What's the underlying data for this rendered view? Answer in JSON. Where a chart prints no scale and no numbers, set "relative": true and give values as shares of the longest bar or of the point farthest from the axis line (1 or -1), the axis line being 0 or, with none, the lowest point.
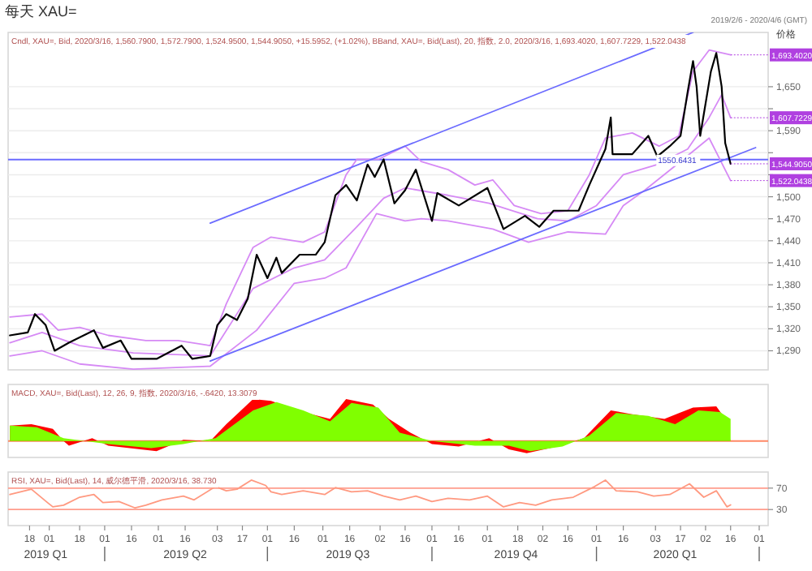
{
  "chart_data": [
    {
      "type": "line",
      "title": "每天 XAU=",
      "subtitle": "2019/2/6 - 2020/4/6 (GMT)",
      "ylabel": "价格",
      "xlim": [
        "2019-02-06",
        "2020-04-06"
      ],
      "ylim": [
        1264,
        1724
      ],
      "grid": "y",
      "tick_labels": "y",
      "yticks": [
        {
          "value": 1290,
          "label": "1,290"
        },
        {
          "value": 1320,
          "label": "1,320"
        },
        {
          "value": 1350,
          "label": "1,350"
        },
        {
          "value": 1380,
          "label": "1,380"
        },
        {
          "value": 1410,
          "label": "1,410"
        },
        {
          "value": 1440,
          "label": "1,440"
        },
        {
          "value": 1470,
          "label": "1,470"
        },
        {
          "value": 1500,
          "label": "1,500"
        },
        {
          "value": 1530,
          "label": null
        },
        {
          "value": 1560,
          "label": null
        },
        {
          "value": 1590,
          "label": "1,590"
        },
        {
          "value": 1620,
          "label": null
        },
        {
          "value": 1650,
          "label": "1,650"
        }
      ],
      "ref_lines": [
        {
          "axis": "y",
          "value": 1550.6431,
          "label": "1550.6431",
          "color": "#6b6bff"
        }
      ],
      "series": [
        {
          "color": "#d68af5",
          "x": [
            "2019-02-07",
            "2019-02-25",
            "2019-03-06",
            "2019-03-18",
            "2019-04-03",
            "2019-04-24",
            "2019-05-12",
            "2019-05-30",
            "2019-06-08",
            "2019-06-23",
            "2019-07-03",
            "2019-07-21",
            "2019-08-02",
            "2019-08-14",
            "2019-08-20",
            "2019-09-01",
            "2019-09-16",
            "2019-09-25",
            "2019-10-10",
            "2019-10-25",
            "2019-11-04",
            "2019-11-16",
            "2019-12-01",
            "2019-12-16",
            "2019-12-28",
            "2020-01-06",
            "2020-01-21",
            "2020-02-05",
            "2020-02-16",
            "2020-02-24",
            "2020-03-04",
            "2020-03-16"
          ],
          "values": [
            1336,
            1340,
            1318,
            1322,
            1311,
            1304,
            1304,
            1297,
            1354,
            1431,
            1445,
            1438,
            1452,
            1530,
            1551,
            1551,
            1569,
            1548,
            1537,
            1516,
            1523,
            1488,
            1477,
            1481,
            1530,
            1580,
            1587,
            1569,
            1583,
            1671,
            1700,
            1693.402
          ]
        },
        {
          "color": "#d68af5",
          "x": [
            "2019-02-07",
            "2019-02-25",
            "2019-03-18",
            "2019-04-17",
            "2019-05-30",
            "2019-06-23",
            "2019-07-16",
            "2019-08-02",
            "2019-08-20",
            "2019-09-04",
            "2019-09-16",
            "2019-10-10",
            "2019-11-02",
            "2019-11-29",
            "2019-12-16",
            "2020-01-01",
            "2020-01-16",
            "2020-02-04",
            "2020-02-21",
            "2020-03-04",
            "2020-03-11",
            "2020-03-16"
          ],
          "values": [
            1301,
            1315,
            1297,
            1287,
            1283,
            1375,
            1403,
            1414,
            1459,
            1498,
            1512,
            1502,
            1491,
            1470,
            1467,
            1488,
            1530,
            1544,
            1565,
            1608,
            1639,
            1607.7229
          ]
        },
        {
          "color": "#d68af5",
          "x": [
            "2019-02-07",
            "2019-02-25",
            "2019-03-18",
            "2019-04-17",
            "2019-05-30",
            "2019-06-25",
            "2019-07-16",
            "2019-08-02",
            "2019-08-14",
            "2019-08-31",
            "2019-09-16",
            "2019-09-25",
            "2019-10-10",
            "2019-11-04",
            "2019-11-24",
            "2019-12-16",
            "2020-01-06",
            "2020-01-16",
            "2020-01-28",
            "2020-02-15",
            "2020-03-04",
            "2020-03-16"
          ],
          "values": [
            1283,
            1290,
            1272,
            1265,
            1269,
            1318,
            1382,
            1389,
            1403,
            1477,
            1467,
            1470,
            1467,
            1456,
            1438,
            1452,
            1449,
            1488,
            1509,
            1544,
            1580,
            1522.0438
          ]
        },
        {
          "color": "#6b6bff",
          "x": [
            "2019-05-30",
            "2020-02-24"
          ],
          "values": [
            1464,
            1724
          ]
        },
        {
          "color": "#6b6bff",
          "x": [
            "2019-05-30",
            "2020-03-30"
          ],
          "values": [
            1276,
            1567
          ]
        },
        {
          "color": "#000000",
          "x": [
            "2019-02-07",
            "2019-02-17",
            "2019-02-21",
            "2019-02-27",
            "2019-03-04",
            "2019-03-12",
            "2019-03-26",
            "2019-03-31",
            "2019-04-10",
            "2019-04-16",
            "2019-04-30",
            "2019-05-14",
            "2019-05-20",
            "2019-05-30",
            "2019-06-03",
            "2019-06-08",
            "2019-06-14",
            "2019-06-20",
            "2019-06-25",
            "2019-07-01",
            "2019-07-06",
            "2019-07-09",
            "2019-07-19",
            "2019-07-28",
            "2019-08-02",
            "2019-08-08",
            "2019-08-14",
            "2019-08-20",
            "2019-08-26",
            "2019-08-30",
            "2019-09-04",
            "2019-09-10",
            "2019-09-16",
            "2019-09-22",
            "2019-10-01",
            "2019-10-04",
            "2019-10-16",
            "2019-11-01",
            "2019-11-10",
            "2019-11-22",
            "2019-11-30",
            "2019-12-08",
            "2019-12-22",
            "2019-12-28",
            "2020-01-06",
            "2020-01-09",
            "2020-01-10",
            "2020-01-21",
            "2020-01-30",
            "2020-02-04",
            "2020-02-11",
            "2020-02-17",
            "2020-02-21",
            "2020-02-24",
            "2020-02-26",
            "2020-02-28",
            "2020-03-05",
            "2020-03-08",
            "2020-03-11",
            "2020-03-13",
            "2020-03-16"
          ],
          "values": [
            1311,
            1315,
            1340,
            1325,
            1290,
            1301,
            1318,
            1294,
            1304,
            1279,
            1279,
            1297,
            1279,
            1283,
            1325,
            1340,
            1332,
            1361,
            1421,
            1389,
            1417,
            1396,
            1421,
            1421,
            1438,
            1502,
            1516,
            1495,
            1544,
            1527,
            1551,
            1491,
            1509,
            1537,
            1467,
            1505,
            1488,
            1512,
            1456,
            1474,
            1459,
            1481,
            1481,
            1516,
            1565,
            1608,
            1558,
            1558,
            1583,
            1555,
            1569,
            1583,
            1643,
            1685,
            1650,
            1583,
            1671,
            1696,
            1650,
            1573,
            1544.905
          ]
        }
      ],
      "annotations": [
        "Cndl, XAU=, Bid, 2020/3/16, 1,560.7900, 1,572.7900, 1,524.9500, 1,544.9050, +15.5952, (+1.02%), BBand, XAU=, Bid(Last), 20, 指数, 2.0, 2020/3/16, 1,693.4020, 1,607.7229, 1,522.0438",
        {
          "text": "1,693.4020",
          "x": "2020-03-16",
          "y": 1693.402
        },
        {
          "text": "1,607.7229",
          "x": "2020-03-16",
          "y": 1607.7229
        },
        {
          "text": "1,544.9050",
          "x": "2020-03-16",
          "y": 1544.905
        },
        {
          "text": "1,522.0438",
          "x": "2020-03-16",
          "y": 1522.0438
        }
      ]
    },
    {
      "type": "area",
      "relative": true,
      "xlim": [
        "2019-02-06",
        "2020-04-06"
      ],
      "tick_labels": false,
      "ref_lines": [
        {
          "axis": "y",
          "value": 0,
          "label": null,
          "color": "#ff8866"
        }
      ],
      "series": [
        {
          "color": "#ff0000",
          "x": [
            "2019-02-07",
            "2019-02-19",
            "2019-03-03",
            "2019-03-09",
            "2019-03-12",
            "2019-03-25",
            "2019-04-03",
            "2019-04-21",
            "2019-04-30",
            "2019-05-15",
            "2019-05-30",
            "2019-06-08",
            "2019-06-23",
            "2019-07-03",
            "2019-07-21",
            "2019-08-05",
            "2019-08-14",
            "2019-08-29",
            "2019-09-07",
            "2019-09-19",
            "2019-10-01",
            "2019-10-16",
            "2019-11-02",
            "2019-11-13",
            "2019-11-23",
            "2019-12-10",
            "2019-12-25",
            "2020-01-09",
            "2020-01-21",
            "2020-02-08",
            "2020-02-24",
            "2020-03-08",
            "2020-03-13",
            "2020-03-16"
          ],
          "values": [
            0.37,
            0.4,
            0.29,
            0,
            -0.11,
            0.07,
            -0.11,
            -0.2,
            -0.24,
            0.03,
            0,
            0.4,
            1,
            0.96,
            0.69,
            0.53,
            1,
            0.87,
            0.53,
            0.2,
            -0.07,
            -0.13,
            0.07,
            -0.2,
            -0.29,
            -0.13,
            0.07,
            0.73,
            0.64,
            0.53,
            0.8,
            0.83,
            0.53,
            -0.01
          ]
        },
        {
          "color": "#80ff00",
          "x": [
            "2019-02-07",
            "2019-02-22",
            "2019-03-09",
            "2019-04-03",
            "2019-04-27",
            "2019-05-15",
            "2019-06-02",
            "2019-06-23",
            "2019-07-06",
            "2019-07-21",
            "2019-08-05",
            "2019-08-17",
            "2019-09-01",
            "2019-09-13",
            "2019-10-01",
            "2019-10-25",
            "2019-11-13",
            "2019-11-25",
            "2019-12-13",
            "2019-12-28",
            "2020-01-12",
            "2020-01-30",
            "2020-02-14",
            "2020-02-27",
            "2020-03-10",
            "2020-03-16"
          ],
          "values": [
            0.37,
            0.33,
            0.07,
            -0.07,
            -0.17,
            -0.07,
            0.07,
            0.73,
            0.93,
            0.73,
            0.47,
            0.91,
            0.8,
            0.2,
            0,
            -0.11,
            -0.11,
            -0.24,
            -0.13,
            0.13,
            0.67,
            0.6,
            0.4,
            0.73,
            0.69,
            0.53
          ]
        }
      ],
      "annotations": [
        "MACD, XAU=, Bid(Last), 12, 26, 9, 指数, 2020/3/16, -.6420, 13.3079"
      ]
    },
    {
      "type": "line",
      "xlim": [
        "2019-02-06",
        "2020-04-06"
      ],
      "x2lim": [
        "2019-02-06",
        "2020-04-06"
      ],
      "ylim": [
        0,
        100
      ],
      "yticks": [
        70,
        30
      ],
      "xticks": [
        {
          "value": "2019-02-18",
          "label": "18"
        },
        {
          "value": "2019-03-01",
          "label": "01"
        },
        {
          "value": "2019-03-18",
          "label": "18"
        },
        {
          "value": "2019-04-01",
          "label": "01"
        },
        {
          "value": "2019-04-16",
          "label": "16"
        },
        {
          "value": "2019-05-01",
          "label": "01"
        },
        {
          "value": "2019-05-16",
          "label": "16"
        },
        {
          "value": "2019-06-03",
          "label": "03"
        },
        {
          "value": "2019-06-17",
          "label": "17"
        },
        {
          "value": "2019-07-01",
          "label": "01"
        },
        {
          "value": "2019-07-16",
          "label": "16"
        },
        {
          "value": "2019-08-01",
          "label": "01"
        },
        {
          "value": "2019-08-16",
          "label": "16"
        },
        {
          "value": "2019-09-02",
          "label": "02"
        },
        {
          "value": "2019-09-16",
          "label": "16"
        },
        {
          "value": "2019-10-01",
          "label": "01"
        },
        {
          "value": "2019-10-16",
          "label": "16"
        },
        {
          "value": "2019-11-01",
          "label": "01"
        },
        {
          "value": "2019-11-18",
          "label": "18"
        },
        {
          "value": "2019-12-02",
          "label": "02"
        },
        {
          "value": "2019-12-16",
          "label": "16"
        },
        {
          "value": "2020-01-01",
          "label": "01"
        },
        {
          "value": "2020-01-16",
          "label": "16"
        },
        {
          "value": "2020-02-03",
          "label": "03"
        },
        {
          "value": "2020-02-17",
          "label": "17"
        },
        {
          "value": "2020-03-02",
          "label": "02"
        },
        {
          "value": "2020-03-16",
          "label": "16"
        },
        {
          "value": "2020-04-01",
          "label": "01"
        }
      ],
      "x2ticks": [
        {
          "value": "2019-02-27",
          "label": "2019 Q1"
        },
        {
          "value": "2019-04-01",
          "label": null
        },
        {
          "value": "2019-05-16",
          "label": "2019 Q2"
        },
        {
          "value": "2019-07-01",
          "label": null
        },
        {
          "value": "2019-08-15",
          "label": "2019 Q3"
        },
        {
          "value": "2019-10-01",
          "label": null
        },
        {
          "value": "2019-11-17",
          "label": "2019 Q4"
        },
        {
          "value": "2020-01-01",
          "label": null
        },
        {
          "value": "2020-02-14",
          "label": "2020 Q1"
        },
        {
          "value": "2020-04-01",
          "label": null
        }
      ],
      "ref_lines": [
        {
          "axis": "y",
          "value": 70,
          "label": null,
          "color": "#ff9c8c"
        },
        {
          "axis": "y",
          "value": 30,
          "label": null,
          "color": "#ff9c8c"
        }
      ],
      "series": [
        {
          "color": "#ff9980",
          "x": [
            "2019-02-07",
            "2019-02-19",
            "2019-02-28",
            "2019-03-03",
            "2019-03-09",
            "2019-03-18",
            "2019-03-26",
            "2019-03-31",
            "2019-04-09",
            "2019-04-18",
            "2019-04-24",
            "2019-05-03",
            "2019-05-15",
            "2019-05-21",
            "2019-06-02",
            "2019-06-08",
            "2019-06-14",
            "2019-06-22",
            "2019-06-30",
            "2019-07-03",
            "2019-07-09",
            "2019-07-21",
            "2019-08-02",
            "2019-08-08",
            "2019-08-17",
            "2019-08-26",
            "2019-09-04",
            "2019-09-13",
            "2019-09-22",
            "2019-10-01",
            "2019-10-10",
            "2019-10-22",
            "2019-11-01",
            "2019-11-10",
            "2019-11-19",
            "2019-11-28",
            "2019-12-07",
            "2019-12-19",
            "2019-12-31",
            "2020-01-06",
            "2020-01-12",
            "2020-01-24",
            "2020-02-02",
            "2020-02-11",
            "2020-02-22",
            "2020-03-01",
            "2020-03-08",
            "2020-03-14",
            "2020-03-16"
          ],
          "values": [
            58,
            68,
            43,
            35,
            38,
            53,
            58,
            43,
            45,
            33,
            38,
            48,
            55,
            48,
            73,
            65,
            68,
            85,
            75,
            63,
            58,
            65,
            58,
            71,
            63,
            65,
            55,
            48,
            55,
            45,
            51,
            48,
            55,
            35,
            43,
            38,
            48,
            53,
            73,
            85,
            65,
            63,
            55,
            58,
            78,
            53,
            65,
            35,
            38.73
          ]
        }
      ],
      "annotations": [
        "RSI, XAU=, Bid(Last), 14, 威尔德平滑, 2020/3/16, 38.730"
      ]
    }
  ]
}
